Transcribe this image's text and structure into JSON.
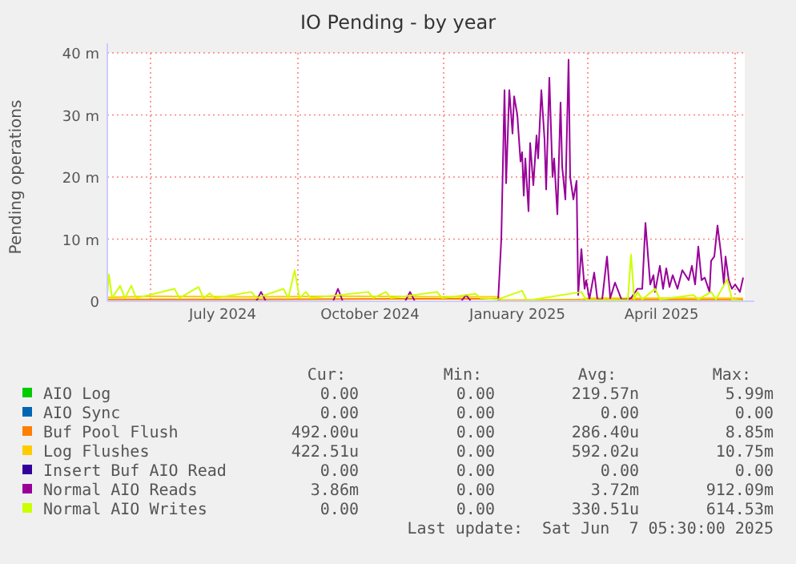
{
  "chart_data": {
    "type": "line",
    "title": "IO Pending - by year",
    "ylabel": "Pending operations",
    "legend": "bottom",
    "grid": true,
    "xlim": [
      "2024-05-05",
      "2025-06-07"
    ],
    "xticks": [
      {
        "value": "2024-06-01",
        "label": null
      },
      {
        "value": "2024-07-16",
        "label": "July 2024"
      },
      {
        "value": "2024-09-01",
        "label": null
      },
      {
        "value": "2024-10-16",
        "label": "October 2024"
      },
      {
        "value": "2024-12-01",
        "label": null
      },
      {
        "value": "2025-01-16",
        "label": "January 2025"
      },
      {
        "value": "2025-03-01",
        "label": null
      },
      {
        "value": "2025-04-16",
        "label": "April 2025"
      },
      {
        "value": "2025-06-01",
        "label": null
      }
    ],
    "ylim": [
      0,
      40
    ],
    "yticks": [
      0,
      {
        "value": 10,
        "label": "10 m"
      },
      {
        "value": 20,
        "label": "20 m"
      },
      {
        "value": 30,
        "label": "30 m"
      },
      {
        "value": 40,
        "label": "40 m"
      }
    ],
    "series": [
      {
        "name": "AIO Log",
        "color": "#00cc00"
      },
      {
        "name": "AIO Sync",
        "color": "#0066b3"
      },
      {
        "name": "Buf Pool Flush",
        "color": "#ff8000",
        "x": [
          "2024-05-05",
          "2024-08-01",
          "2024-11-01",
          "2025-01-04",
          "2025-01-06",
          "2025-03-01",
          "2025-06-06"
        ],
        "values": [
          0.3,
          0.3,
          0.4,
          0.4,
          0.1,
          0.3,
          0.3
        ]
      },
      {
        "name": "Log Flushes",
        "color": "#ffcc00",
        "x": [
          "2024-05-05",
          "2024-06-01",
          "2024-08-01",
          "2024-10-01",
          "2024-12-01",
          "2025-01-04",
          "2025-01-06",
          "2025-02-24",
          "2025-03-01",
          "2025-06-06"
        ],
        "values": [
          0.6,
          0.8,
          0.7,
          0.8,
          0.7,
          0.7,
          0.2,
          0.2,
          0.5,
          0.5
        ]
      },
      {
        "name": "Insert Buf AIO Read",
        "color": "#330099"
      },
      {
        "name": "Normal AIO Reads",
        "color": "#990099",
        "x": [
          "2024-05-05",
          "2024-08-06",
          "2024-08-09",
          "2024-08-12",
          "2024-09-23",
          "2024-09-26",
          "2024-09-29",
          "2024-11-07",
          "2024-11-10",
          "2024-11-13",
          "2024-12-12",
          "2024-12-15",
          "2024-12-18",
          "2025-01-04",
          "2025-01-06",
          "2025-01-08",
          "2025-01-09",
          "2025-01-11",
          "2025-01-13",
          "2025-01-14",
          "2025-01-16",
          "2025-01-18",
          "2025-01-19",
          "2025-01-20",
          "2025-01-21",
          "2025-01-23",
          "2025-01-24",
          "2025-01-26",
          "2025-01-28",
          "2025-01-29",
          "2025-01-31",
          "2025-02-02",
          "2025-02-03",
          "2025-02-05",
          "2025-02-07",
          "2025-02-08",
          "2025-02-10",
          "2025-02-12",
          "2025-02-13",
          "2025-02-15",
          "2025-02-17",
          "2025-02-18",
          "2025-02-20",
          "2025-02-22",
          "2025-02-23",
          "2025-02-25",
          "2025-02-27",
          "2025-02-28",
          "2025-03-02",
          "2025-03-05",
          "2025-03-07",
          "2025-03-10",
          "2025-03-13",
          "2025-03-15",
          "2025-03-18",
          "2025-03-22",
          "2025-03-25",
          "2025-03-28",
          "2025-04-01",
          "2025-04-04",
          "2025-04-06",
          "2025-04-09",
          "2025-04-11",
          "2025-04-12",
          "2025-04-15",
          "2025-04-17",
          "2025-04-19",
          "2025-04-21",
          "2025-04-23",
          "2025-04-26",
          "2025-04-29",
          "2025-05-03",
          "2025-05-05",
          "2025-05-07",
          "2025-05-09",
          "2025-05-11",
          "2025-05-13",
          "2025-05-16",
          "2025-05-17",
          "2025-05-19",
          "2025-05-21",
          "2025-05-23",
          "2025-05-25",
          "2025-05-26",
          "2025-05-28",
          "2025-05-30",
          "2025-06-01",
          "2025-06-04",
          "2025-06-06"
        ],
        "values": [
          0,
          0,
          1.5,
          0,
          0,
          2,
          0,
          0,
          1.5,
          0,
          0,
          1,
          0,
          0,
          10,
          34,
          19,
          34,
          27,
          33,
          30,
          22.5,
          24,
          17,
          23,
          14.5,
          25.5,
          18.7,
          26.7,
          23,
          34,
          26,
          18,
          36,
          20,
          23,
          14,
          32,
          21.7,
          16.4,
          38.9,
          20,
          16.4,
          19.4,
          1,
          8.4,
          2,
          3.4,
          0.3,
          4.6,
          0.3,
          0.3,
          7.2,
          0.5,
          3,
          0.3,
          0.3,
          0.5,
          2,
          2,
          12.6,
          2.7,
          4.2,
          1.5,
          5.7,
          2,
          5.3,
          2.3,
          4.2,
          2,
          5,
          3.4,
          5.7,
          2.7,
          8.8,
          3.4,
          3.8,
          1.5,
          6.5,
          7.2,
          12.2,
          8,
          2.7,
          7.2,
          3.4,
          2,
          2.7,
          1.5,
          3.8
        ]
      },
      {
        "name": "Normal AIO Writes",
        "color": "#ccff00",
        "x": [
          "2024-05-05",
          "2024-05-06",
          "2024-05-08",
          "2024-05-13",
          "2024-05-16",
          "2024-05-20",
          "2024-05-23",
          "2024-06-16",
          "2024-06-19",
          "2024-07-01",
          "2024-07-04",
          "2024-07-08",
          "2024-07-11",
          "2024-08-03",
          "2024-08-06",
          "2024-08-23",
          "2024-08-26",
          "2024-08-30",
          "2024-09-02",
          "2024-09-06",
          "2024-09-09",
          "2024-10-15",
          "2024-10-18",
          "2024-10-26",
          "2024-10-29",
          "2024-11-27",
          "2024-11-30",
          "2024-12-21",
          "2024-12-24",
          "2025-01-04",
          "2025-01-19",
          "2025-01-22",
          "2025-02-25",
          "2025-02-28",
          "2025-03-26",
          "2025-03-28",
          "2025-03-30",
          "2025-04-01",
          "2025-04-04",
          "2025-04-12",
          "2025-04-15",
          "2025-05-06",
          "2025-05-09",
          "2025-05-17",
          "2025-05-20",
          "2025-05-27",
          "2025-05-30",
          "2025-06-06"
        ],
        "values": [
          1,
          4.3,
          0.5,
          2.5,
          0.5,
          2.5,
          0.5,
          2,
          0.5,
          2.3,
          0.5,
          1.3,
          0.5,
          1.5,
          0.5,
          2,
          0.5,
          5,
          0.5,
          1.5,
          0.5,
          1.5,
          0.5,
          1.5,
          0.5,
          1.5,
          0.5,
          1.2,
          0.5,
          0.3,
          1.7,
          0.1,
          1.5,
          0.2,
          0.2,
          7.5,
          0.3,
          1.5,
          0.3,
          2,
          0.3,
          1,
          0.3,
          1.5,
          0.3,
          3.5,
          0.3,
          0
        ]
      }
    ],
    "annotations": [
      "Cur:",
      "Min:",
      "Avg:",
      "Max:",
      "0.00",
      "0.00",
      "219.57n",
      "5.99m",
      "0.00",
      "0.00",
      "0.00",
      "0.00",
      "492.00u",
      "0.00",
      "286.40u",
      "8.85m",
      "422.51u",
      "0.00",
      "592.02u",
      "10.75m",
      "0.00",
      "0.00",
      "0.00",
      "0.00",
      "3.86m",
      "0.00",
      "3.72m",
      "912.09m",
      "0.00",
      "0.00",
      "330.51u",
      "614.53m",
      "Last update:  Sat Jun  7 05:30:00 2025"
    ]
  }
}
